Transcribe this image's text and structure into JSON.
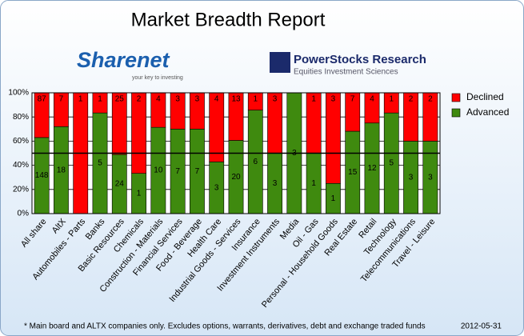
{
  "chart_data": {
    "type": "bar",
    "stacking": "percent",
    "title": "Market Breadth Report",
    "logos": [
      {
        "name": "Sharenet",
        "tagline": "your key to investing"
      },
      {
        "name": "PowerStocks Research",
        "tagline": "Equities Investment Sciences"
      }
    ],
    "categories": [
      "All share",
      "AltX",
      "Automobiles - Parts",
      "Banks",
      "Basic Resources",
      "Chemicals",
      "Construction - Materials",
      "Financial Services",
      "Food - Beverage",
      "Health Care",
      "Industrial Goods - Services",
      "Insurance",
      "Investment Instruments",
      "Media",
      "Oil - Gas",
      "Personal - Household Goods",
      "Real Estate",
      "Retail",
      "Technology",
      "Telecommunications",
      "Travel - Leisure"
    ],
    "series": [
      {
        "name": "Advanced",
        "color": "#3f8a0f",
        "values": [
          148,
          18,
          0,
          5,
          24,
          1,
          10,
          7,
          7,
          3,
          20,
          6,
          3,
          3,
          1,
          1,
          15,
          12,
          5,
          3,
          3
        ]
      },
      {
        "name": "Declined",
        "color": "#ff0000",
        "values": [
          87,
          7,
          1,
          1,
          25,
          2,
          4,
          3,
          3,
          4,
          13,
          1,
          3,
          0,
          1,
          3,
          7,
          4,
          1,
          2,
          2
        ]
      }
    ],
    "ylim": [
      0,
      100
    ],
    "yticks": [
      {
        "value": 0,
        "label": "0%"
      },
      {
        "value": 20,
        "label": "20%"
      },
      {
        "value": 40,
        "label": "40%"
      },
      {
        "value": 60,
        "label": "60%"
      },
      {
        "value": 80,
        "label": "80%"
      },
      {
        "value": 100,
        "label": "100%"
      }
    ],
    "reference_line": 50,
    "grid": true,
    "legend": "right",
    "footnote": "* Main board and ALTX companies only. Excludes options, warrants, derivatives, debt and exchange traded funds",
    "date": "2012-05-31"
  }
}
